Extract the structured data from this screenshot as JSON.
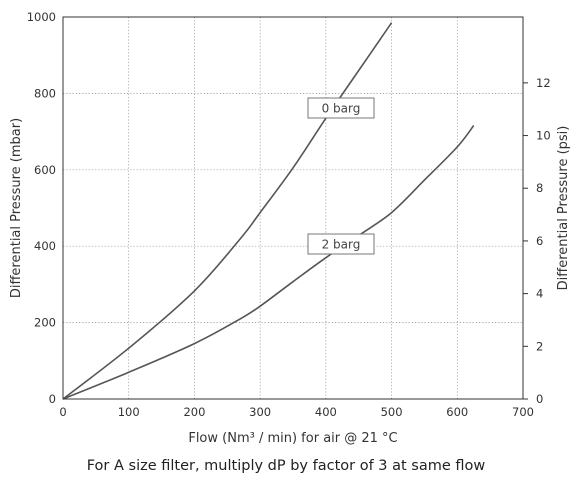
{
  "chart_data": {
    "type": "line",
    "xlabel": "Flow (Nm³ / min) for air @ 21 °C",
    "ylabel": "Differential Pressure (mbar)",
    "y2label": "Differential Pressure (psi)",
    "note": "For A size filter, multiply dP by factor of 3 at same flow",
    "xlim": [
      0,
      700
    ],
    "ylim": [
      0,
      1000
    ],
    "y2lim": [
      0,
      14.5
    ],
    "x_ticks": [
      0,
      100,
      200,
      300,
      400,
      500,
      600,
      700
    ],
    "y_ticks": [
      0,
      200,
      400,
      600,
      800,
      1000
    ],
    "y2_ticks": [
      0,
      2,
      4,
      6,
      8,
      10,
      12
    ],
    "grid": true,
    "series": [
      {
        "name": "0 barg",
        "x": [
          0,
          100,
          200,
          270,
          300,
          350,
          400,
          450,
          500
        ],
        "y": [
          0,
          133,
          283,
          420,
          488,
          605,
          735,
          860,
          985
        ]
      },
      {
        "name": "2 barg",
        "x": [
          0,
          100,
          200,
          270,
          300,
          350,
          400,
          450,
          500,
          550,
          600,
          625
        ],
        "y": [
          0,
          70,
          145,
          210,
          243,
          307,
          370,
          428,
          488,
          573,
          660,
          716
        ]
      }
    ],
    "annotations": [
      {
        "text": "0 barg",
        "series": 0
      },
      {
        "text": "2 barg",
        "series": 1
      }
    ]
  }
}
